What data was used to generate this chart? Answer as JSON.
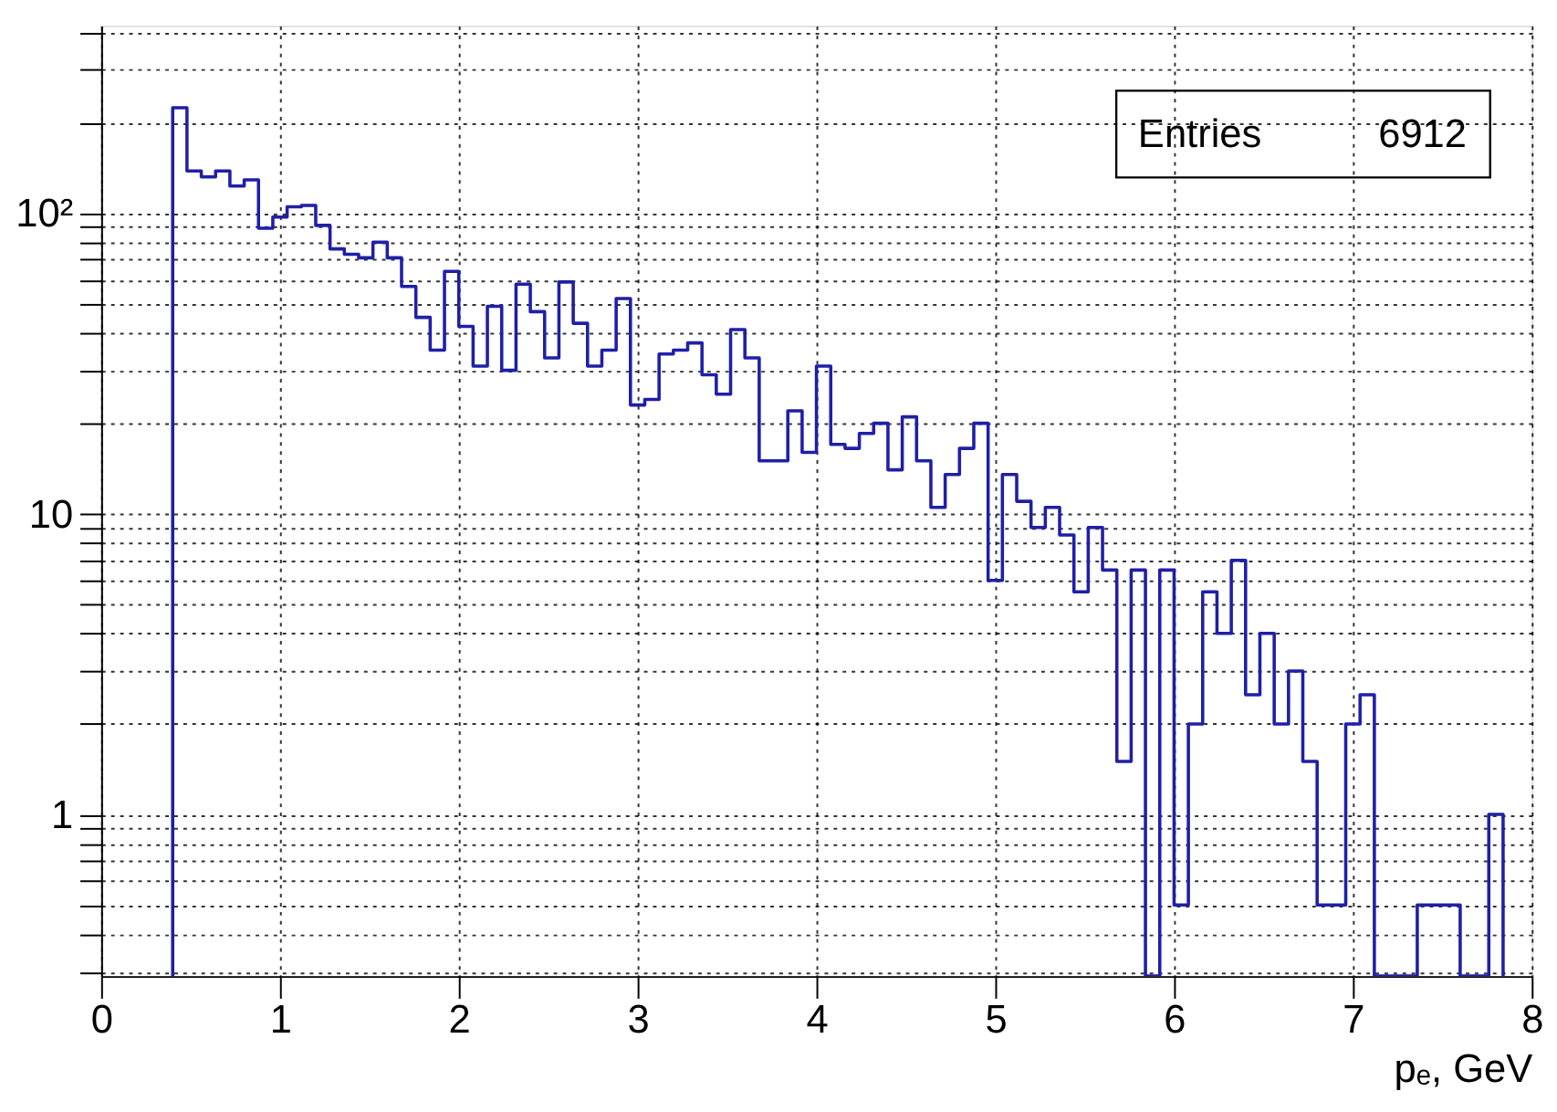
{
  "chart_data": {
    "type": "histogram",
    "xlabel": "pₑ, GeV",
    "color": "#1f1fa8",
    "bins": [
      0.4,
      0.48,
      0.56,
      0.64,
      0.72,
      0.8,
      0.88,
      0.96,
      1.04,
      1.12,
      1.2,
      1.28,
      1.36,
      1.44,
      1.52,
      1.6,
      1.68,
      1.76,
      1.84,
      1.92,
      2.0,
      2.08,
      2.16,
      2.24,
      2.32,
      2.4,
      2.48,
      2.56,
      2.64,
      2.72,
      2.8,
      2.88,
      2.96,
      3.04,
      3.12,
      3.2,
      3.28,
      3.36,
      3.44,
      3.52,
      3.6,
      3.68,
      3.76,
      3.84,
      3.92,
      4.0,
      4.08,
      4.16,
      4.24,
      4.32,
      4.4,
      4.48,
      4.56,
      4.64,
      4.72,
      4.8,
      4.88,
      4.96,
      5.04,
      5.12,
      5.2,
      5.28,
      5.36,
      5.44,
      5.52,
      5.6,
      5.68,
      5.76,
      5.84,
      5.92,
      6.0,
      6.08,
      6.16,
      6.24,
      6.32,
      6.4,
      6.48,
      6.56,
      6.64,
      6.72,
      6.8,
      6.88,
      6.96,
      7.04,
      7.12,
      7.2,
      7.28,
      7.36,
      7.44,
      7.52,
      7.6,
      7.68,
      7.76,
      7.84
    ],
    "values": [
      224,
      138,
      132,
      138,
      123,
      129,
      89,
      97,
      105,
      106,
      91,
      76,
      73,
      71,
      80,
      71,
      57,
      45,
      35,
      64,
      42,
      31,
      49,
      30,
      58,
      47,
      33,
      59,
      43,
      31,
      35,
      52,
      23,
      24,
      34,
      35,
      37,
      29,
      25,
      41,
      33,
      15,
      15,
      22,
      16,
      31,
      17,
      16.5,
      18.5,
      20,
      14,
      21,
      15,
      10.5,
      13.5,
      16.5,
      20,
      6,
      13.5,
      11,
      9,
      10.5,
      8.5,
      5.5,
      9,
      6.5,
      1.5,
      6.5,
      null,
      6.5,
      0.5,
      2,
      5.5,
      4,
      7,
      2.5,
      4,
      2,
      3,
      1.5,
      0.5,
      0.5,
      2,
      2.5,
      null,
      null,
      null,
      0.5,
      0.5,
      0.5,
      null,
      null,
      1
    ],
    "xlim": [
      0,
      8
    ],
    "xticks": [
      0,
      1,
      2,
      3,
      4,
      5,
      6,
      7,
      8
    ],
    "ylim": [
      0.29,
      420
    ],
    "log": true,
    "yticks": [
      {
        "value": 0.3,
        "label": null
      },
      {
        "value": 0.4,
        "label": null
      },
      {
        "value": 0.5,
        "label": null
      },
      {
        "value": 0.6,
        "label": null
      },
      {
        "value": 0.7,
        "label": null
      },
      {
        "value": 0.8,
        "label": null
      },
      {
        "value": 0.9,
        "label": null
      },
      1,
      {
        "value": 2,
        "label": null
      },
      {
        "value": 3,
        "label": null
      },
      {
        "value": 4,
        "label": null
      },
      {
        "value": 5,
        "label": null
      },
      {
        "value": 6,
        "label": null
      },
      {
        "value": 7,
        "label": null
      },
      {
        "value": 8,
        "label": null
      },
      {
        "value": 9,
        "label": null
      },
      10,
      {
        "value": 20,
        "label": null
      },
      {
        "value": 30,
        "label": null
      },
      {
        "value": 40,
        "label": null
      },
      {
        "value": 50,
        "label": null
      },
      {
        "value": 60,
        "label": null
      },
      {
        "value": 70,
        "label": null
      },
      {
        "value": 80,
        "label": null
      },
      {
        "value": 90,
        "label": null
      },
      {
        "value": 100,
        "label": "10²"
      },
      {
        "value": 200,
        "label": null
      },
      {
        "value": 300,
        "label": null
      },
      {
        "value": 400,
        "label": null
      }
    ],
    "grid": true,
    "annotations": [
      "Entries     6912"
    ]
  }
}
